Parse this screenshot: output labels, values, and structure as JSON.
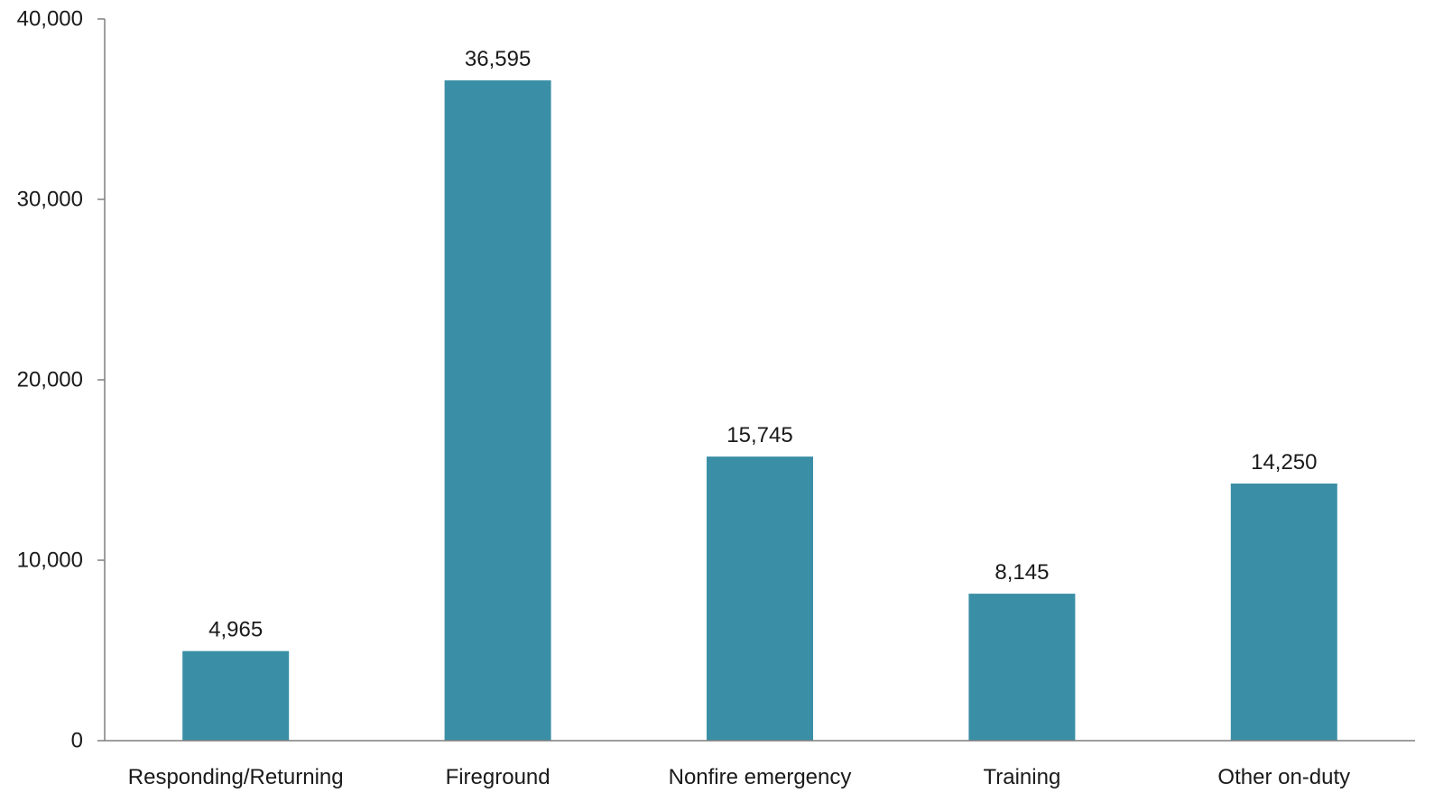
{
  "chart_data": {
    "type": "bar",
    "title": "",
    "xlabel": "",
    "ylabel": "",
    "categories": [
      "Responding/Returning",
      "Fireground",
      "Nonfire emergency",
      "Training",
      "Other on-duty"
    ],
    "values": [
      4965,
      36595,
      15745,
      8145,
      14250
    ],
    "value_labels": [
      "4,965",
      "36,595",
      "15,745",
      "8,145",
      "14,250"
    ],
    "ylim": [
      0,
      40000
    ],
    "yticks": [
      0,
      10000,
      20000,
      30000,
      40000
    ],
    "ytick_labels": [
      "0",
      "10,000",
      "20,000",
      "30,000",
      "40,000"
    ],
    "grid": false,
    "legend": "none",
    "bar_color": "#3a8fa6"
  }
}
